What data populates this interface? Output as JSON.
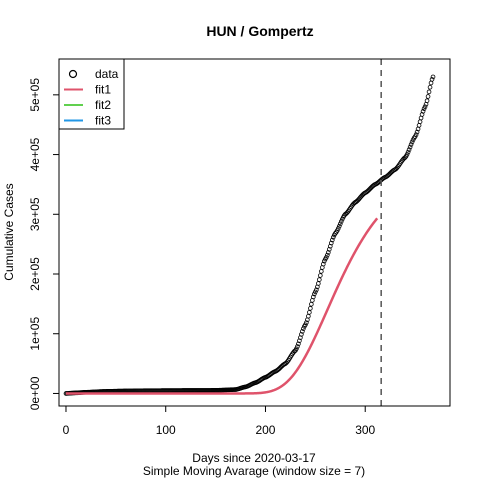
{
  "chart_data": {
    "type": "line",
    "title": "HUN / Gompertz",
    "xlabel": "Days since 2020-03-17",
    "xlabel2": "Simple Moving Avarage (window size = 7)",
    "ylabel": "Cumulative Cases",
    "xlim": [
      -7,
      385
    ],
    "ylim": [
      -21000,
      560000
    ],
    "x_ticks": [
      0,
      100,
      200,
      300
    ],
    "y_ticks": [
      0,
      100000,
      200000,
      300000,
      400000,
      500000
    ],
    "y_tick_labels": [
      "0e+00",
      "1e+05",
      "2e+05",
      "3e+05",
      "4e+05",
      "5e+05"
    ],
    "vline_x": 316,
    "legend_position": "top-left",
    "legend": [
      {
        "label": "data",
        "kind": "point",
        "color": "#000000"
      },
      {
        "label": "fit1",
        "kind": "line",
        "color": "#DF536B"
      },
      {
        "label": "fit2",
        "kind": "line",
        "color": "#61D04F"
      },
      {
        "label": "fit3",
        "kind": "line",
        "color": "#2297E6"
      }
    ],
    "data_anchors": [
      [
        0,
        0
      ],
      [
        10,
        1000
      ],
      [
        20,
        2000
      ],
      [
        40,
        3500
      ],
      [
        60,
        4200
      ],
      [
        80,
        4600
      ],
      [
        100,
        4800
      ],
      [
        120,
        5000
      ],
      [
        150,
        5200
      ],
      [
        170,
        6500
      ],
      [
        180,
        11000
      ],
      [
        190,
        18000
      ],
      [
        200,
        27000
      ],
      [
        210,
        37000
      ],
      [
        220,
        50000
      ],
      [
        230,
        72000
      ],
      [
        240,
        115000
      ],
      [
        250,
        170000
      ],
      [
        260,
        225000
      ],
      [
        270,
        268000
      ],
      [
        280,
        300000
      ],
      [
        290,
        320000
      ],
      [
        300,
        336000
      ],
      [
        310,
        350000
      ],
      [
        320,
        362000
      ],
      [
        330,
        375000
      ],
      [
        340,
        395000
      ],
      [
        350,
        430000
      ],
      [
        360,
        480000
      ],
      [
        368,
        530000
      ]
    ],
    "fit1": {
      "a": 380000,
      "b": 6.5,
      "c": 0.027,
      "x_range": [
        0,
        312
      ],
      "color": "#DF536B"
    }
  }
}
